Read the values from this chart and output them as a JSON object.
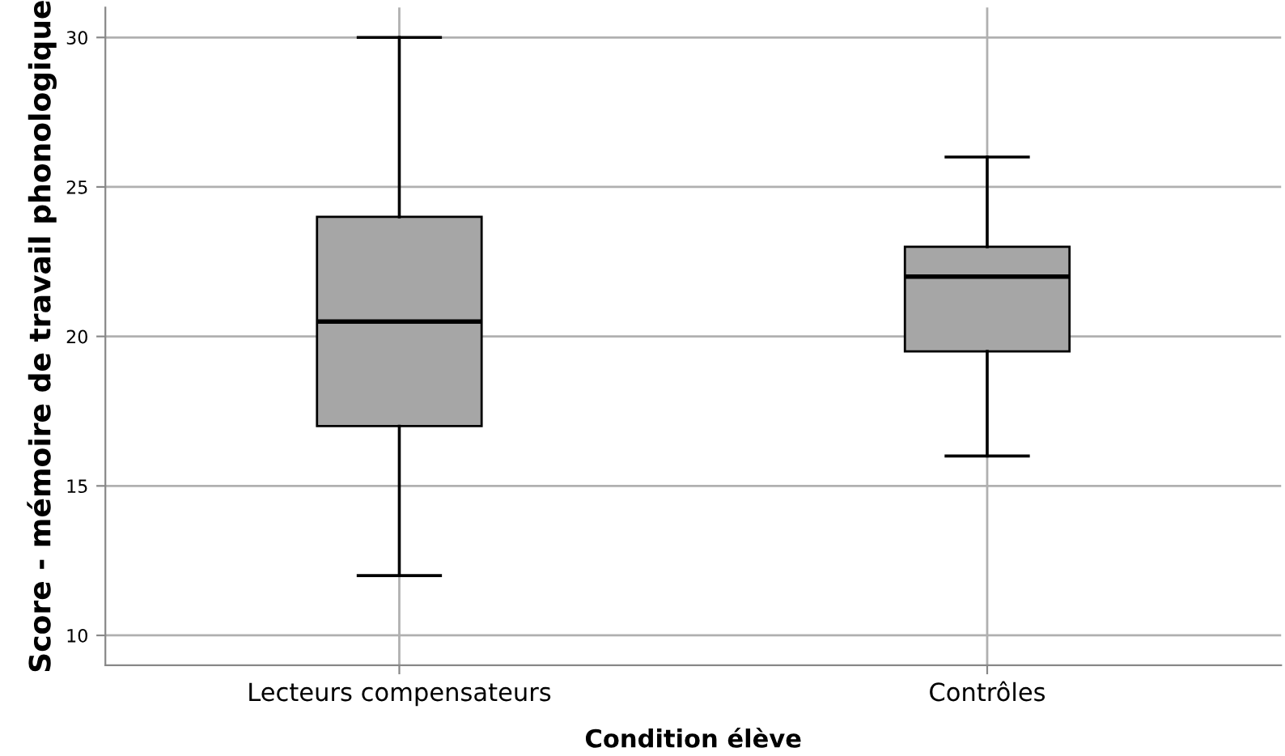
{
  "chart_data": {
    "type": "box",
    "xlabel": "Condition élève",
    "ylabel": "Score - mémoire de travail phonologique",
    "categories": [
      "Lecteurs compensateurs",
      "Contrôles"
    ],
    "boxes": [
      {
        "low": 12,
        "q1": 17,
        "median": 20.5,
        "q3": 24,
        "high": 30
      },
      {
        "low": 16,
        "q1": 19.5,
        "median": 22,
        "q3": 23,
        "high": 26
      }
    ],
    "color": "#a6a6a6",
    "ylim": [
      9,
      31
    ],
    "yticks": [
      10,
      15,
      20,
      25,
      30
    ],
    "grid": true
  }
}
